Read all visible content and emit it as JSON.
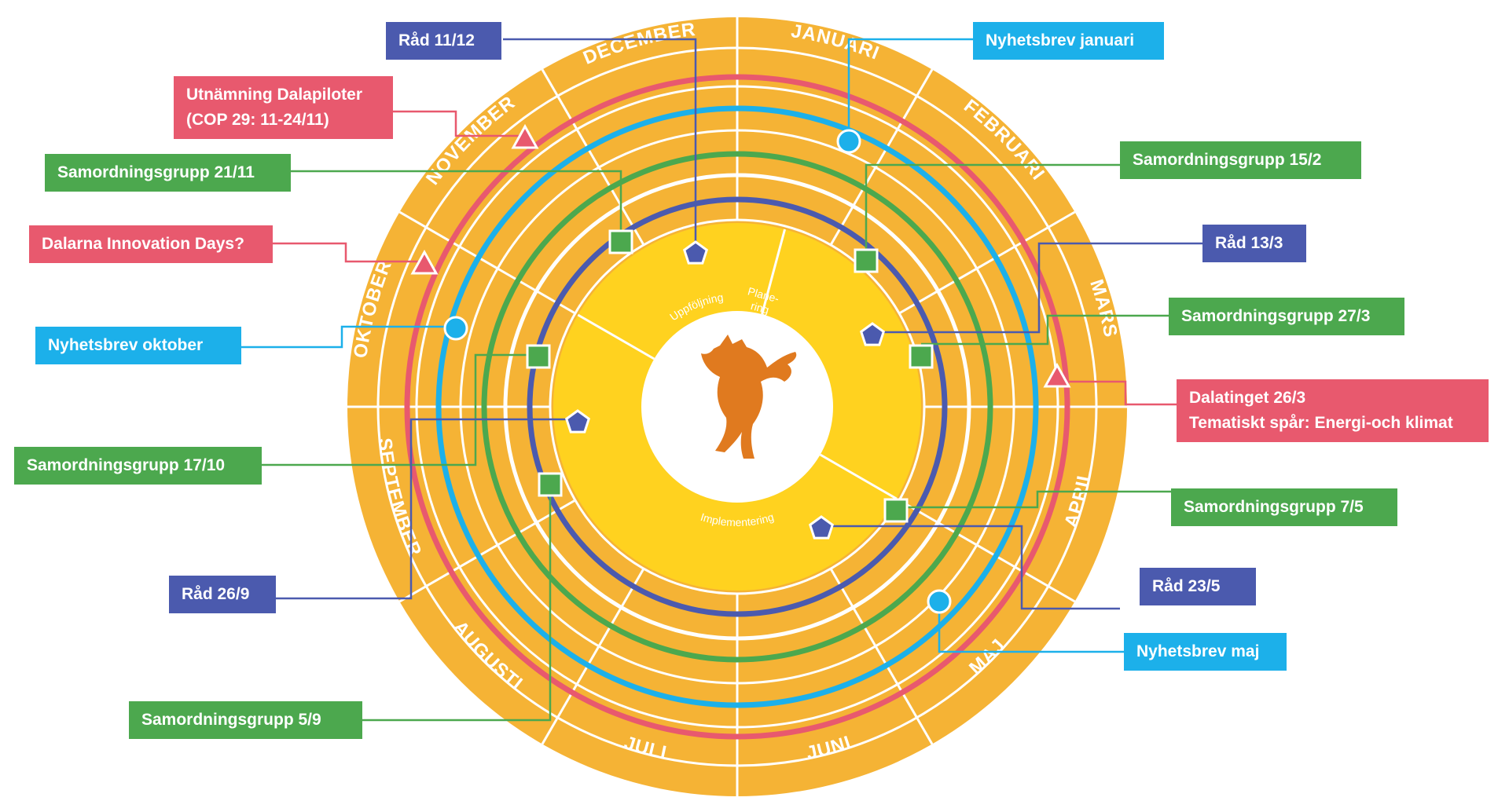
{
  "colors": {
    "wheel": "#F5B335",
    "wheel_inner": "#FFD21F",
    "ring_red": "#E8596E",
    "ring_blue": "#1CB0EA",
    "ring_green": "#4CA84E",
    "ring_navy": "#4B5AAE",
    "fox": "#E07A1F"
  },
  "months": [
    "JANUARI",
    "FEBRUARI",
    "MARS",
    "APRIL",
    "MAJ",
    "JUNI",
    "JULI",
    "AUGUSTI",
    "SEPTEMBER",
    "OKTOBER",
    "NOVEMBER",
    "DECEMBER"
  ],
  "phases": {
    "planering": "Plane-\nring",
    "implementering": "Implementering",
    "uppfoljning": "Uppföljning"
  },
  "callouts": [
    {
      "id": "rad-11-12",
      "type": "rad",
      "lines": [
        "Råd 11/12"
      ]
    },
    {
      "id": "nyhetsbrev-januari",
      "type": "nyhetsbrev",
      "lines": [
        "Nyhetsbrev januari"
      ]
    },
    {
      "id": "utnamning-dalapiloter",
      "type": "event",
      "lines": [
        "Utnämning Dalapiloter",
        "(COP 29: 11-24/11)"
      ]
    },
    {
      "id": "samordningsgrupp-21-11",
      "type": "samordning",
      "lines": [
        "Samordningsgrupp 21/11"
      ]
    },
    {
      "id": "samordningsgrupp-15-2",
      "type": "samordning",
      "lines": [
        "Samordningsgrupp 15/2"
      ]
    },
    {
      "id": "dalarna-innovation-days",
      "type": "event",
      "lines": [
        "Dalarna Innovation Days?"
      ]
    },
    {
      "id": "rad-13-3",
      "type": "rad",
      "lines": [
        "Råd 13/3"
      ]
    },
    {
      "id": "samordningsgrupp-27-3",
      "type": "samordning",
      "lines": [
        "Samordningsgrupp 27/3"
      ]
    },
    {
      "id": "nyhetsbrev-oktober",
      "type": "nyhetsbrev",
      "lines": [
        "Nyhetsbrev oktober"
      ]
    },
    {
      "id": "dalatinget-26-3",
      "type": "event",
      "lines": [
        "Dalatinget 26/3",
        "Tematiskt spår: Energi-och klimat"
      ]
    },
    {
      "id": "samordningsgrupp-17-10",
      "type": "samordning",
      "lines": [
        "Samordningsgrupp 17/10"
      ]
    },
    {
      "id": "samordningsgrupp-7-5",
      "type": "samordning",
      "lines": [
        "Samordningsgrupp 7/5"
      ]
    },
    {
      "id": "rad-26-9",
      "type": "rad",
      "lines": [
        "Råd 26/9"
      ]
    },
    {
      "id": "rad-23-5",
      "type": "rad",
      "lines": [
        "Råd 23/5"
      ]
    },
    {
      "id": "nyhetsbrev-maj",
      "type": "nyhetsbrev",
      "lines": [
        "Nyhetsbrev maj"
      ]
    },
    {
      "id": "samordningsgrupp-5-9",
      "type": "samordning",
      "lines": [
        "Samordningsgrupp 5/9"
      ]
    }
  ]
}
